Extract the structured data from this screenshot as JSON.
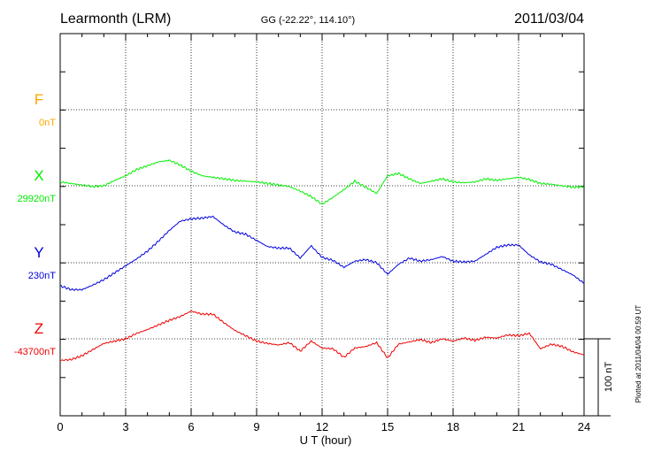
{
  "header": {
    "station": "Learmonth (LRM)",
    "coords": "GG (-22.22°, 114.10°)",
    "date": "2011/03/04"
  },
  "side_note": "Plotted at 2011/04/04 00:59 UT",
  "scale_label": "100 nT",
  "colors": {
    "F": "#ffa500",
    "X": "#00ee00",
    "Y": "#0000dd",
    "Z": "#ee0000",
    "axis": "#000000"
  },
  "chart_data": {
    "type": "line",
    "xlabel": "U T (hour)",
    "xlim": [
      0,
      24
    ],
    "xticks": [
      "0",
      "3",
      "6",
      "9",
      "12",
      "15",
      "18",
      "21",
      "24"
    ],
    "scale_nT": 100,
    "series": [
      {
        "name": "F",
        "baseline_label": "0nT",
        "color": "#ffa500",
        "x": [],
        "values": []
      },
      {
        "name": "X",
        "baseline_label": "29920nT",
        "color": "#00ee00",
        "x": [
          0,
          0.5,
          1,
          1.5,
          2,
          2.5,
          3,
          3.5,
          4,
          4.5,
          5,
          5.5,
          6,
          6.5,
          7,
          7.5,
          8,
          8.5,
          9,
          9.5,
          10,
          10.5,
          11,
          11.5,
          12,
          12.5,
          13,
          13.5,
          14,
          14.5,
          15,
          15.5,
          16,
          16.5,
          17,
          17.5,
          18,
          18.5,
          19,
          19.5,
          20,
          20.5,
          21,
          21.5,
          22,
          22.5,
          23,
          23.5,
          24
        ],
        "values": [
          29925,
          29923,
          29921,
          29919,
          29920,
          29927,
          29933,
          29941,
          29946,
          29951,
          29953,
          29947,
          29939,
          29933,
          29931,
          29929,
          29927,
          29926,
          29925,
          29923,
          29921,
          29919,
          29913,
          29906,
          29896,
          29905,
          29915,
          29926,
          29918,
          29910,
          29933,
          29936,
          29929,
          29923,
          29926,
          29929,
          29925,
          29924,
          29925,
          29929,
          29927,
          29929,
          29931,
          29928,
          29923,
          29922,
          29920,
          29918,
          29919
        ]
      },
      {
        "name": "Y",
        "baseline_label": "230nT",
        "color": "#0000dd",
        "x": [
          0,
          0.5,
          1,
          1.5,
          2,
          2.5,
          3,
          3.5,
          4,
          4.5,
          5,
          5.5,
          6,
          6.5,
          7,
          7.5,
          8,
          8.5,
          9,
          9.5,
          10,
          10.5,
          11,
          11.5,
          12,
          12.5,
          13,
          13.5,
          14,
          14.5,
          15,
          15.5,
          16,
          16.5,
          17,
          17.5,
          18,
          18.5,
          19,
          19.5,
          20,
          20.5,
          21,
          21.5,
          22,
          22.5,
          23,
          23.5,
          24
        ],
        "values": [
          200,
          195,
          195,
          201,
          208,
          217,
          226,
          235,
          245,
          258,
          272,
          284,
          287,
          288,
          290,
          279,
          270,
          267,
          259,
          251,
          249,
          249,
          236,
          252,
          237,
          233,
          224,
          232,
          234,
          230,
          215,
          228,
          236,
          232,
          234,
          238,
          232,
          231,
          232,
          241,
          250,
          253,
          253,
          240,
          231,
          228,
          221,
          214,
          203
        ]
      },
      {
        "name": "Z",
        "baseline_label": "-43700nT",
        "color": "#ee0000",
        "x": [
          0,
          0.5,
          1,
          1.5,
          2,
          2.5,
          3,
          3.5,
          4,
          4.5,
          5,
          5.5,
          6,
          6.5,
          7,
          7.5,
          8,
          8.5,
          9,
          9.5,
          10,
          10.5,
          11,
          11.5,
          12,
          12.5,
          13,
          13.5,
          14,
          14.5,
          15,
          15.5,
          16,
          16.5,
          17,
          17.5,
          18,
          18.5,
          19,
          19.5,
          20,
          20.5,
          21,
          21.5,
          22,
          22.5,
          23,
          23.5,
          24
        ],
        "values": [
          -43728,
          -43727,
          -43722,
          -43714,
          -43706,
          -43703,
          -43700,
          -43693,
          -43688,
          -43682,
          -43676,
          -43671,
          -43664,
          -43668,
          -43668,
          -43679,
          -43689,
          -43696,
          -43703,
          -43706,
          -43708,
          -43705,
          -43716,
          -43703,
          -43712,
          -43713,
          -43724,
          -43712,
          -43710,
          -43705,
          -43725,
          -43707,
          -43704,
          -43701,
          -43705,
          -43700,
          -43703,
          -43699,
          -43702,
          -43698,
          -43699,
          -43695,
          -43696,
          -43693,
          -43713,
          -43707,
          -43710,
          -43717,
          -43721
        ]
      }
    ]
  }
}
